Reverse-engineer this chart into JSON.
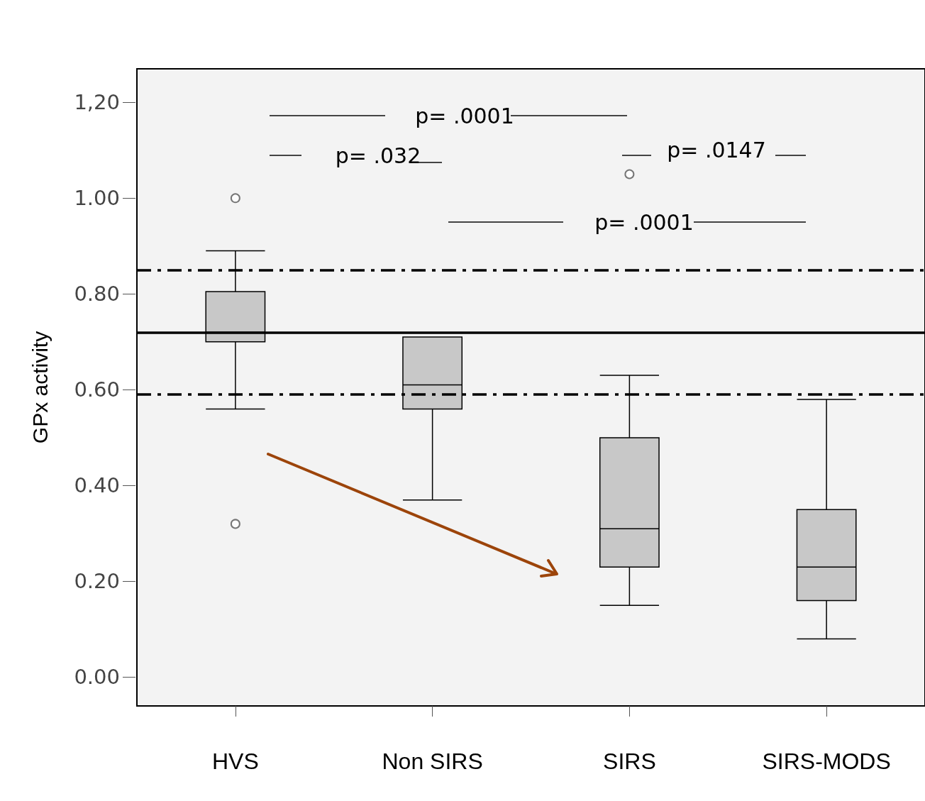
{
  "chart_data": {
    "type": "box",
    "ylabel": "GPx activity",
    "categories": [
      "HVS",
      "Non SIRS",
      "SIRS",
      "SIRS-MODS"
    ],
    "boxes": [
      {
        "low": 0.56,
        "q1": 0.7,
        "median": 0.72,
        "q3": 0.805,
        "high": 0.89,
        "outliers": [
          1.0,
          0.32
        ]
      },
      {
        "low": 0.37,
        "q1": 0.56,
        "median": 0.61,
        "q3": 0.71,
        "high": 0.71
      },
      {
        "low": 0.15,
        "q1": 0.23,
        "median": 0.31,
        "q3": 0.5,
        "high": 0.63,
        "outliers": [
          1.05
        ]
      },
      {
        "low": 0.08,
        "q1": 0.16,
        "median": 0.23,
        "q3": 0.35,
        "high": 0.58
      }
    ],
    "color": "#c8c8c8",
    "ylim": [
      -0.06,
      1.27
    ],
    "yticks": [
      {
        "value": 0,
        "label": "0.00"
      },
      {
        "value": 0.2,
        "label": "0.20"
      },
      {
        "value": 0.4,
        "label": "0.40"
      },
      {
        "value": 0.6,
        "label": "0.60"
      },
      {
        "value": 0.8,
        "label": "0.80"
      },
      {
        "value": 1.0,
        "label": "1.00"
      },
      {
        "value": 1.2,
        "label": "1,20"
      }
    ],
    "ref_lines": [
      {
        "axis": "y",
        "value": 0.72,
        "line_style": "solid",
        "color": "#000000"
      },
      {
        "axis": "y",
        "value": 0.85,
        "line_style": "dashed",
        "color": "#000000"
      },
      {
        "axis": "y",
        "value": 0.59,
        "line_style": "dashed",
        "color": "#000000"
      }
    ],
    "annotations": [
      "p= .0001",
      "p= .032",
      "p= .0147",
      "p= .0001"
    ],
    "grid": false
  }
}
